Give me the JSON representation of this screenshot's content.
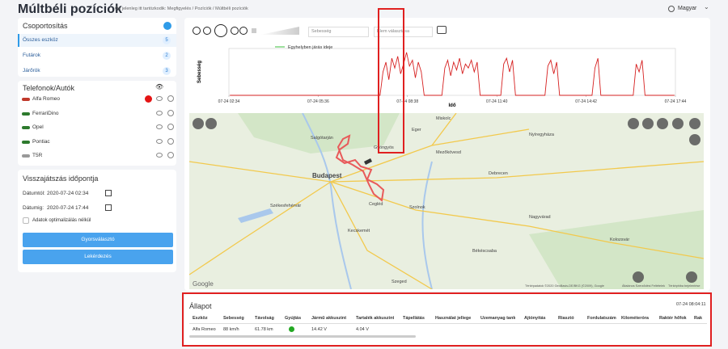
{
  "header": {
    "title": "Múltbéli pozíciók",
    "breadcrumb": "Ön jelenleg itt tartózkodik: Megfigyelés / Pozíciók / Múltbéli pozíciók",
    "language": "Magyar"
  },
  "grouping": {
    "title": "Csoportosítás",
    "items": [
      {
        "label": "Összes eszköz",
        "count": 5
      },
      {
        "label": "Futárok",
        "count": 2
      },
      {
        "label": "Járőrök",
        "count": 3
      }
    ]
  },
  "devices": {
    "title": "Telefonok/Autók",
    "items": [
      "Alfa Romeo",
      "FerrariDino",
      "Opel",
      "Pontiac",
      "T5R"
    ]
  },
  "playback": {
    "title": "Visszajátszás időpontja",
    "from_label": "Dátumtól:",
    "from_value": "2020-07-24 02:34",
    "to_label": "Dátumig:",
    "to_value": "2020-07-24 17:44",
    "checkbox": "Adatok optimalizálás nélkül",
    "quick_button": "Gyorsválasztó",
    "query_button": "Lekérdezés"
  },
  "player": {
    "speed_select": "Sebesség",
    "item_select": "Elem választása"
  },
  "chart_data": {
    "type": "line",
    "y_label": "Sebesség",
    "x_label": "Idő",
    "legend_label": "Egyhelyben járás ideje",
    "legend_color": "#7ed67e",
    "color": "#d62020",
    "x": [
      2.6,
      7.7,
      7.8,
      7.9,
      8.0,
      8.1,
      8.2,
      8.3,
      8.4,
      8.5,
      8.6,
      8.7,
      8.8,
      8.9,
      9.0,
      9.1,
      9.2,
      9.8,
      9.9,
      10.0,
      10.1,
      10.2,
      10.3,
      10.4,
      10.5,
      10.6,
      10.7,
      10.8,
      10.9,
      11.0,
      11.1,
      11.8,
      11.9,
      12.0,
      12.1,
      12.2,
      12.3,
      13.3,
      13.4,
      13.5,
      13.6,
      13.7,
      13.8,
      14.9,
      15.0,
      15.1,
      15.2,
      16.3,
      16.4,
      16.5,
      16.6,
      16.7,
      17.7
    ],
    "values": [
      0,
      0,
      60,
      85,
      40,
      95,
      70,
      100,
      55,
      80,
      110,
      75,
      90,
      45,
      85,
      60,
      0,
      0,
      70,
      90,
      50,
      85,
      65,
      95,
      55,
      80,
      70,
      90,
      60,
      85,
      0,
      0,
      80,
      95,
      60,
      90,
      0,
      0,
      75,
      90,
      55,
      85,
      0,
      0,
      70,
      95,
      0,
      0,
      80,
      60,
      90,
      0,
      0
    ],
    "xlim": [
      2.567,
      17.733
    ],
    "ylim": [
      0,
      120
    ],
    "xticks": [
      {
        "value": 2.567,
        "label": "07-24 02:34"
      },
      {
        "value": 5.6,
        "label": "07-24 05:36"
      },
      {
        "value": 8.633,
        "label": "07-24 08:38"
      },
      {
        "value": 11.667,
        "label": "07-24 11:40"
      },
      {
        "value": 14.7,
        "label": "07-24 14:42"
      },
      {
        "value": 17.733,
        "label": "07-24 17:44"
      }
    ]
  },
  "map": {
    "labels": [
      "Salgótarján",
      "Miskolc",
      "Eger",
      "Gyöngyös",
      "Mezőkövesd",
      "Nyíregyháza",
      "Budapest",
      "Debrecen",
      "Székesfehérvár",
      "Cegléd",
      "Szolnok",
      "Kecskemét",
      "Nagyvárad",
      "Békéscsaba",
      "Kolozsvár",
      "Szeged"
    ],
    "attribution": "Térképadatok ©2020 GeoBasis-DE/BKG (©2009), Google",
    "terms": "Általános Szerződési Feltételek",
    "report": "Térképhiba bejelentése"
  },
  "status": {
    "title": "Állapot",
    "timestamp": "07-24 08:04:11",
    "columns": [
      "Eszköz",
      "Sebesség",
      "Távolság",
      "Gyújtás",
      "Jármű akkuszint",
      "Tartalék akkuszint",
      "Tápellátás",
      "Használat jellege",
      "Üzemanyag tank",
      "Ajtónyitás",
      "Riasztó",
      "Fordulatszám",
      "Kilométeróra",
      "Raktér hőfok",
      "Rak"
    ],
    "row": {
      "device": "Alfa Romeo",
      "speed": "88 km/h",
      "distance": "61.78 km",
      "vehicle_battery": "14.42 V",
      "backup_battery": "4.04 V"
    }
  }
}
